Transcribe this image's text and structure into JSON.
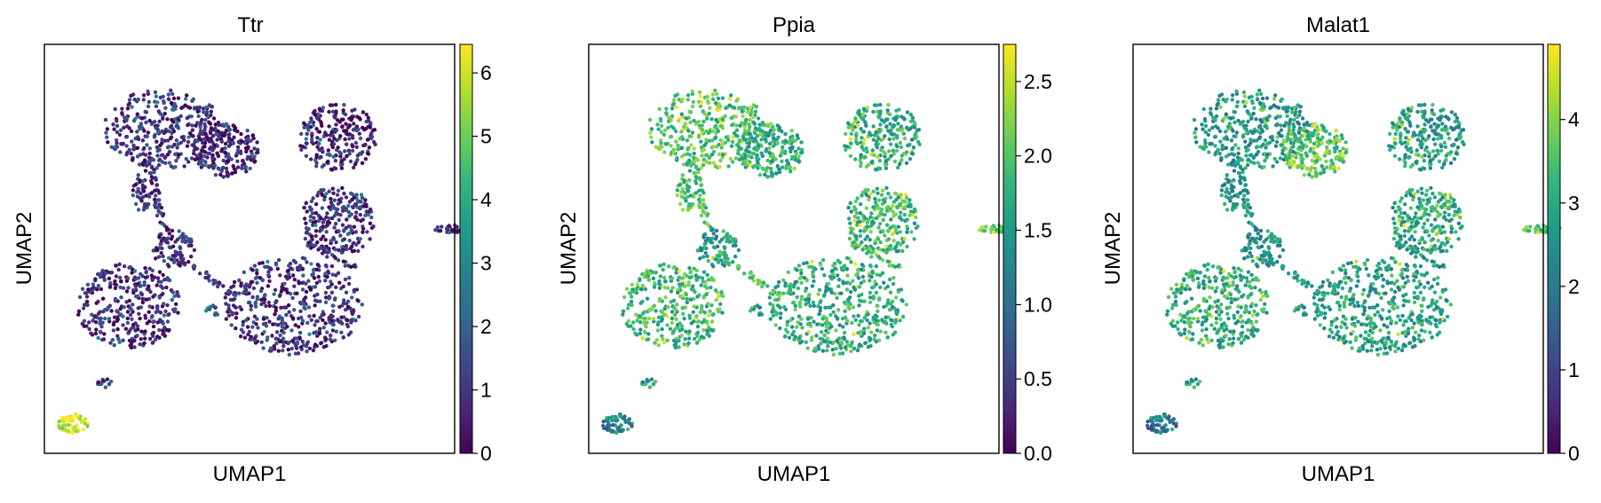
{
  "chart_data": [
    {
      "type": "scatter",
      "title": "Ttr",
      "xlabel": "UMAP1",
      "ylabel": "UMAP2",
      "colormap": "viridis",
      "colorbar": {
        "min": 0,
        "max": 6.45,
        "ticks": [
          "0",
          "1",
          "2",
          "3",
          "4",
          "5",
          "6"
        ]
      },
      "cluster_levels": [
        0.9,
        0.7,
        0.6,
        0.8,
        0.9,
        0.9,
        0.3,
        0.7,
        0.9,
        2.0,
        1.3,
        6.1
      ]
    },
    {
      "type": "scatter",
      "title": "Ppia",
      "xlabel": "UMAP1",
      "ylabel": "UMAP2",
      "colormap": "viridis",
      "colorbar": {
        "min": 0,
        "max": 2.75,
        "ticks": [
          "0.0",
          "0.5",
          "1.0",
          "1.5",
          "2.0",
          "2.5"
        ]
      },
      "cluster_levels": [
        1.95,
        1.7,
        1.7,
        1.8,
        1.5,
        1.7,
        1.9,
        1.8,
        1.9,
        1.5,
        1.6,
        1.2
      ]
    },
    {
      "type": "scatter",
      "title": "Malat1",
      "xlabel": "UMAP1",
      "ylabel": "UMAP2",
      "colormap": "viridis",
      "colorbar": {
        "min": 0,
        "max": 4.9,
        "ticks": [
          "0",
          "1",
          "2",
          "3",
          "4"
        ]
      },
      "cluster_levels": [
        2.6,
        3.6,
        2.7,
        2.9,
        2.5,
        2.8,
        3.2,
        3.0,
        2.5,
        2.6,
        2.9,
        1.9
      ]
    }
  ],
  "colors": {
    "viridis": [
      "#440154",
      "#482878",
      "#3e4989",
      "#31688e",
      "#26828e",
      "#1f9e89",
      "#35b779",
      "#6ece58",
      "#b5de2b",
      "#fde725"
    ]
  }
}
